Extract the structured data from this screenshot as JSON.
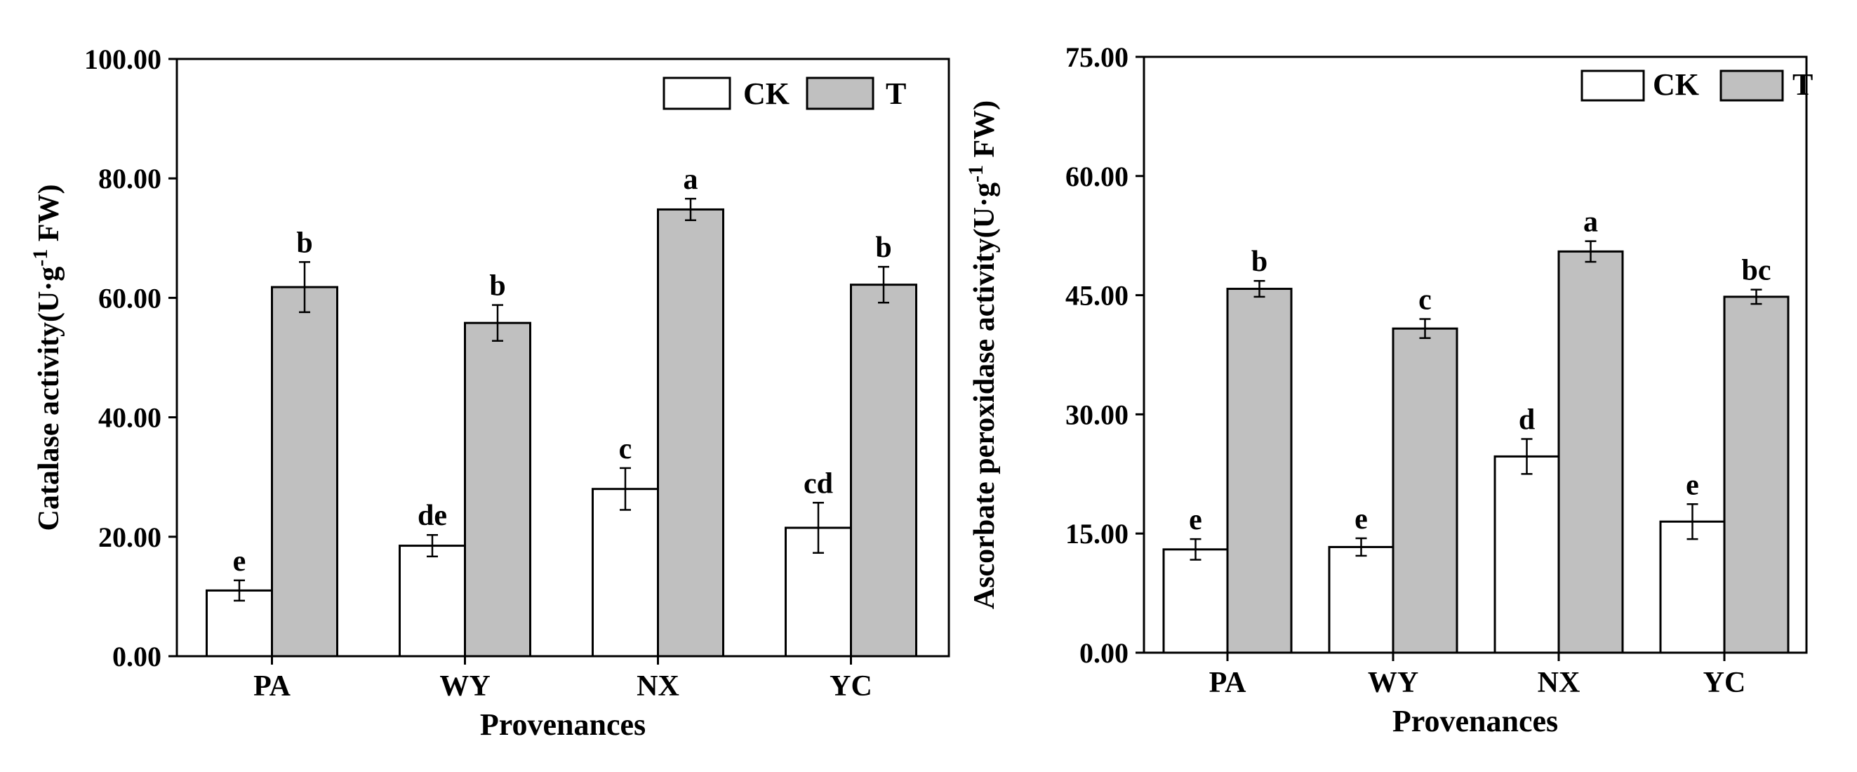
{
  "chart_data": [
    {
      "type": "bar",
      "title": "",
      "xlabel": "Provenances",
      "ylabel": "Catalase activity(U·g",
      "ylabel_sup": "-1",
      "ylabel_tail": " FW)",
      "categories": [
        "PA",
        "WY",
        "NX",
        "YC"
      ],
      "ylim": [
        0,
        100
      ],
      "yticks": [
        "0.00",
        "20.00",
        "40.00",
        "60.00",
        "80.00",
        "100.00"
      ],
      "series": [
        {
          "name": "CK",
          "color": "#ffffff",
          "values": [
            11.0,
            18.5,
            28.0,
            21.5
          ],
          "errors": [
            1.7,
            1.8,
            3.5,
            4.2
          ],
          "letters": [
            "e",
            "de",
            "c",
            "cd"
          ]
        },
        {
          "name": "T",
          "color": "#c0c0c0",
          "values": [
            61.8,
            55.8,
            74.8,
            62.2
          ],
          "errors": [
            4.2,
            3.0,
            1.8,
            3.0
          ],
          "letters": [
            "b",
            "b",
            "a",
            "b"
          ]
        }
      ],
      "legend": "top-right"
    },
    {
      "type": "bar",
      "title": "",
      "xlabel": "Provenances",
      "ylabel": "Ascorbate peroxidase activity(U·g",
      "ylabel_sup": "-1",
      "ylabel_tail": " FW)",
      "categories": [
        "PA",
        "WY",
        "NX",
        "YC"
      ],
      "ylim": [
        0,
        75
      ],
      "yticks": [
        "0.00",
        "15.00",
        "30.00",
        "45.00",
        "60.00",
        "75.00"
      ],
      "series": [
        {
          "name": "CK",
          "color": "#ffffff",
          "values": [
            13.0,
            13.3,
            24.7,
            16.5
          ],
          "errors": [
            1.3,
            1.1,
            2.2,
            2.2
          ],
          "letters": [
            "e",
            "e",
            "d",
            "e"
          ]
        },
        {
          "name": "T",
          "color": "#c0c0c0",
          "values": [
            45.8,
            40.8,
            50.5,
            44.8
          ],
          "errors": [
            1.0,
            1.2,
            1.3,
            0.9
          ],
          "letters": [
            "b",
            "c",
            "a",
            "bc"
          ]
        }
      ],
      "legend": "top-right"
    }
  ]
}
